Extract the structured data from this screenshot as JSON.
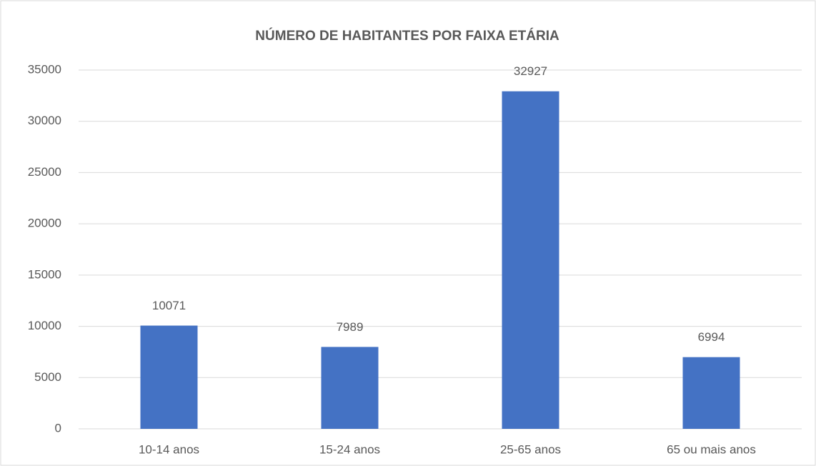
{
  "chart_data": {
    "type": "bar",
    "title": "NÚMERO DE HABITANTES POR FAIXA ETÁRIA",
    "categories": [
      "10-14 anos",
      "15-24 anos",
      "25-65 anos",
      "65 ou mais anos"
    ],
    "values": [
      10071,
      7989,
      32927,
      6994
    ],
    "color": "#4472c4",
    "ylim": [
      0,
      35000
    ],
    "yticks": [
      0,
      5000,
      10000,
      15000,
      20000,
      25000,
      30000,
      35000
    ],
    "grid": true
  }
}
